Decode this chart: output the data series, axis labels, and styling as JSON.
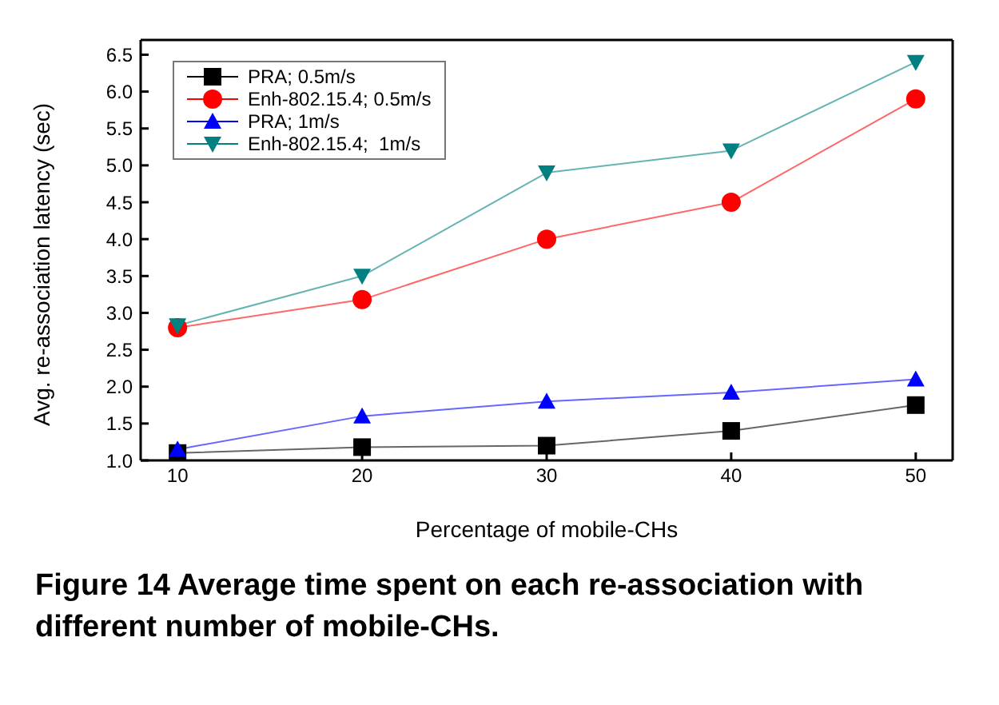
{
  "chart_data": {
    "type": "line",
    "xlabel": "Percentage of mobile-CHs",
    "ylabel": "Avg. re-association latency (sec)",
    "x": [
      10,
      20,
      30,
      40,
      50
    ],
    "series": [
      {
        "name": "PRA; 0.5m/s",
        "color": "#000000",
        "marker": "square",
        "values": [
          1.1,
          1.18,
          1.2,
          1.4,
          1.75
        ]
      },
      {
        "name": "Enh-802.15.4; 0.5m/s",
        "color": "#ff0000",
        "marker": "circle",
        "values": [
          2.8,
          3.18,
          4.0,
          4.5,
          5.9
        ]
      },
      {
        "name": "PRA; 1m/s",
        "color": "#0000ff",
        "marker": "triangle",
        "values": [
          1.15,
          1.6,
          1.8,
          1.92,
          2.1
        ]
      },
      {
        "name": "Enh-802.15.4;  1m/s",
        "color": "#008080",
        "marker": "triangle",
        "values": [
          2.83,
          3.5,
          4.9,
          5.2,
          6.4
        ]
      }
    ],
    "xlim": [
      8,
      52
    ],
    "xticks": [
      10,
      20,
      30,
      40,
      50
    ],
    "ylim": [
      1,
      6.7
    ],
    "yticks": [
      {
        "value": 1,
        "label": "1.0"
      },
      {
        "value": 1.5,
        "label": "1.5"
      },
      {
        "value": 2,
        "label": "2.0"
      },
      {
        "value": 2.5,
        "label": "2.5"
      },
      {
        "value": 3,
        "label": "3.0"
      },
      {
        "value": 3.5,
        "label": "3.5"
      },
      {
        "value": 4,
        "label": "4.0"
      },
      {
        "value": 4.5,
        "label": "4.5"
      },
      {
        "value": 5,
        "label": "5.0"
      },
      {
        "value": 5.5,
        "label": "5.5"
      },
      {
        "value": 6,
        "label": "6.0"
      },
      {
        "value": 6.5,
        "label": "6.5"
      }
    ],
    "legend": "top left",
    "grid": false,
    "annotations": [
      "Figure 14 Average time spent on each re-association with different number of mobile-CHs."
    ]
  }
}
